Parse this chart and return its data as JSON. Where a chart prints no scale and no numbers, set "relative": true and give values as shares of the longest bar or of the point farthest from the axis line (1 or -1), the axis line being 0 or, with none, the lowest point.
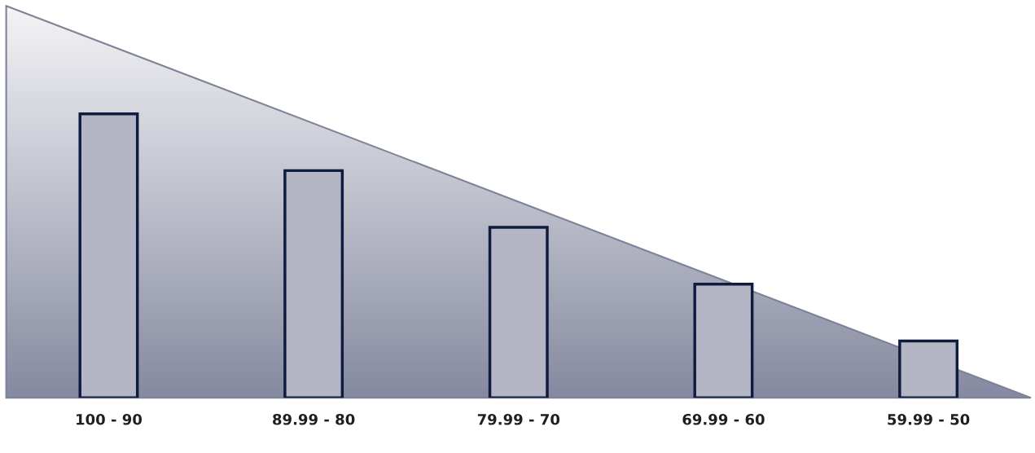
{
  "chart_data": {
    "type": "bar",
    "categories": [
      "100 - 90",
      "89.99 - 80",
      "79.99 - 70",
      "69.99 - 60",
      "59.99 - 50"
    ],
    "values": [
      1,
      0.8,
      0.6,
      0.4,
      0.2
    ],
    "color": "#b4b6c6",
    "relative": true
  }
}
